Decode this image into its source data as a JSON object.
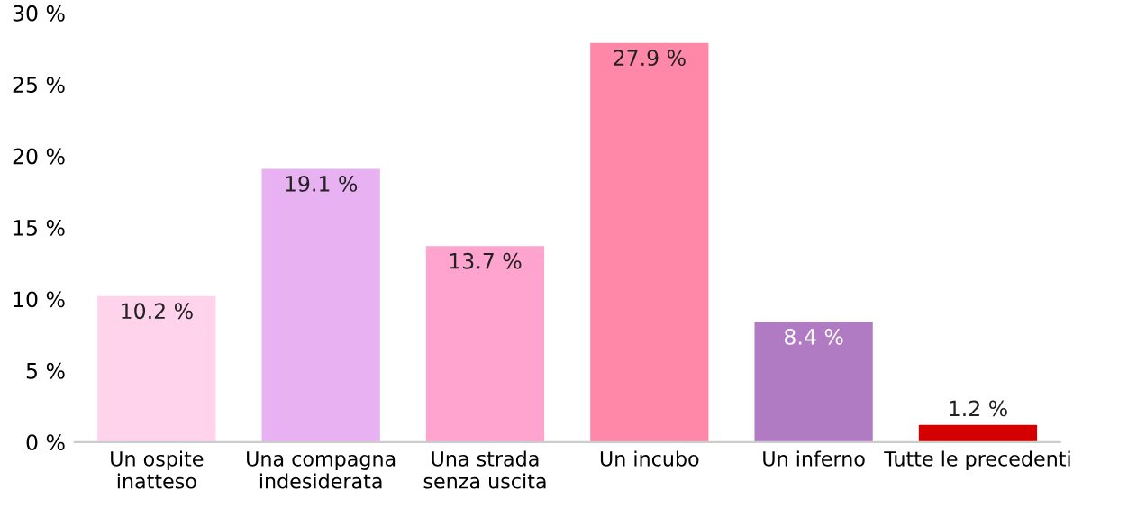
{
  "chart_data": {
    "type": "bar",
    "categories": [
      "Un ospite\ninatteso",
      "Una compagna\nindesiderata",
      "Una strada\nsenza uscita",
      "Un incubo",
      "Un inferno",
      "Tutte le precedenti"
    ],
    "values": [
      10.2,
      19.1,
      13.7,
      27.9,
      8.4,
      1.2
    ],
    "colors": [
      "#ffd3ec",
      "#e8b2f2",
      "#ffa3cf",
      "#ff88a8",
      "#b07bc3",
      "#d40000"
    ],
    "value_labels": [
      "10.2 %",
      "19.1 %",
      "13.7 %",
      "27.9 %",
      "8.4 %",
      "1.2 %"
    ],
    "ylim": [
      0,
      30
    ],
    "yticks": [
      {
        "value": 0,
        "label": "0 %"
      },
      {
        "value": 5,
        "label": "5 %"
      },
      {
        "value": 10,
        "label": "10 %"
      },
      {
        "value": 15,
        "label": "15 %"
      },
      {
        "value": 20,
        "label": "20 %"
      },
      {
        "value": 25,
        "label": "25 %"
      },
      {
        "value": 30,
        "label": "30 %"
      }
    ],
    "grid": false
  }
}
